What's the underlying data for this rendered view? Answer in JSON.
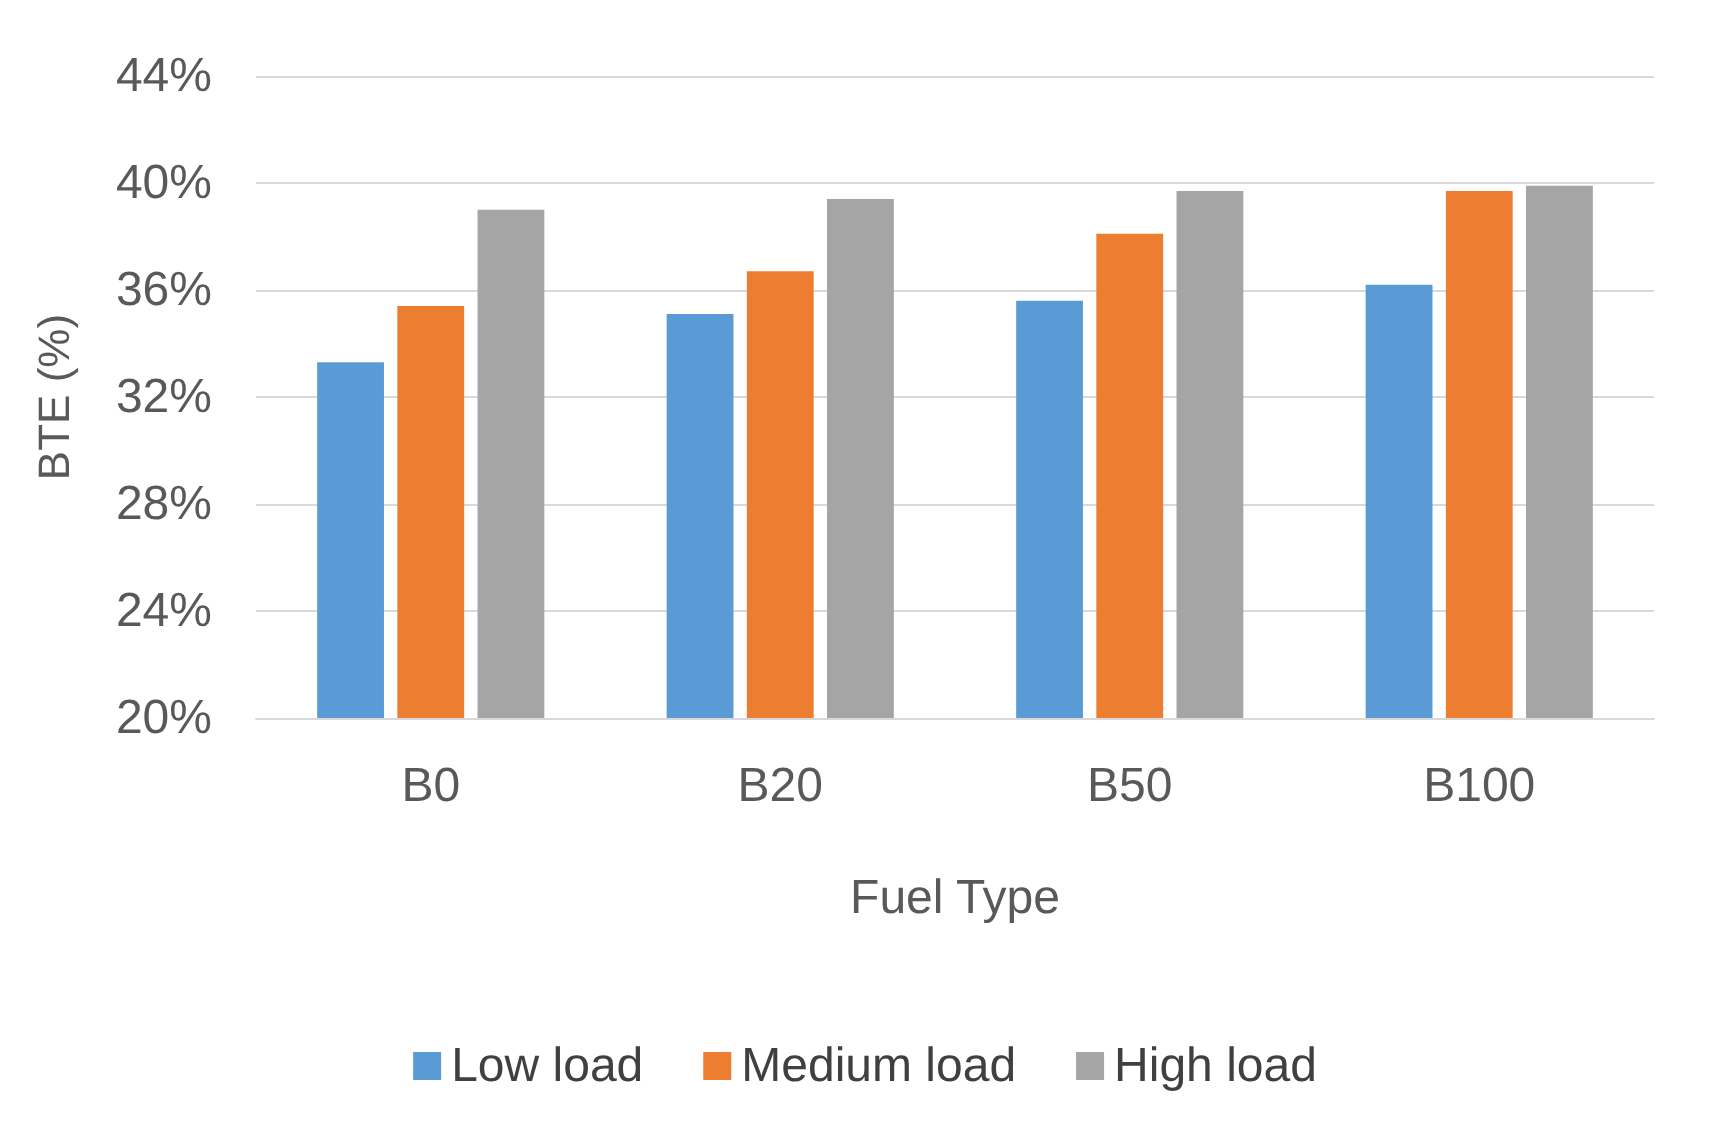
{
  "chart_data": {
    "type": "bar",
    "xlabel": "Fuel Type",
    "ylabel": "BTE (%)",
    "categories": [
      "B0",
      "B20",
      "B50",
      "B100"
    ],
    "series": [
      {
        "name": "Low load",
        "color": "#5b9bd5",
        "values": [
          33.3,
          35.1,
          35.6,
          36.2
        ]
      },
      {
        "name": "Medium load",
        "color": "#ed7d31",
        "values": [
          35.4,
          36.7,
          38.1,
          39.7
        ]
      },
      {
        "name": "High load",
        "color": "#a5a5a5",
        "values": [
          39.0,
          39.4,
          39.7,
          39.9
        ]
      }
    ],
    "ylim": [
      20,
      44
    ],
    "yticks": [
      {
        "value": 20,
        "label": "20%"
      },
      {
        "value": 24,
        "label": "24%"
      },
      {
        "value": 28,
        "label": "28%"
      },
      {
        "value": 32,
        "label": "32%"
      },
      {
        "value": 36,
        "label": "36%"
      },
      {
        "value": 40,
        "label": "40%"
      },
      {
        "value": 44,
        "label": "44%"
      }
    ],
    "grid": "y",
    "legend": "bottom"
  }
}
